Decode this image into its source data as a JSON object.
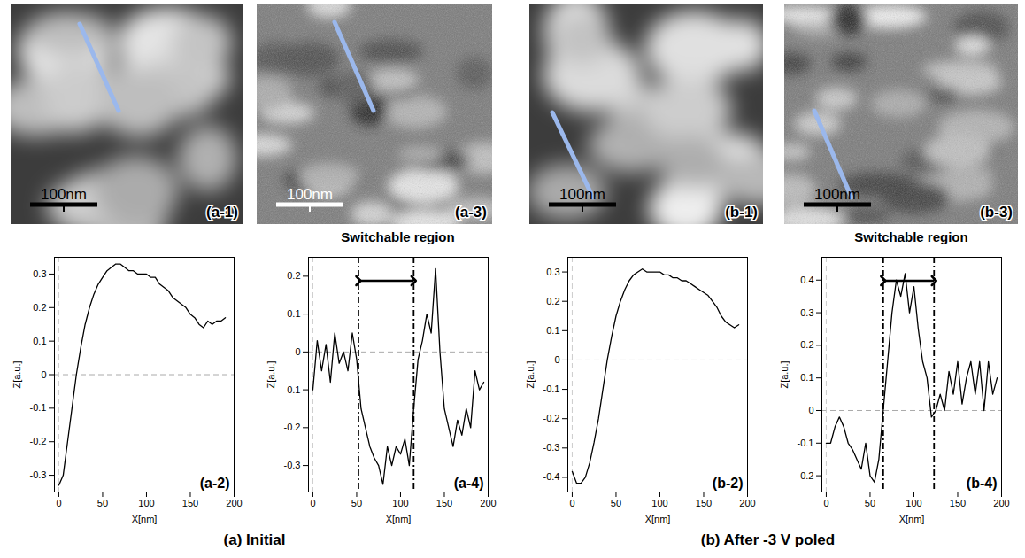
{
  "chart_data": [
    {
      "type": "line",
      "panel": "(a-2)",
      "color": "#000000",
      "x_label": "X[nm]",
      "y_label": "Z[a.u.]",
      "xlim": [
        -5,
        200
      ],
      "ylim": [
        -0.35,
        0.35
      ],
      "xticks": [
        0,
        50,
        100,
        150,
        200
      ],
      "yticks": [
        -0.3,
        -0.2,
        -0.1,
        0,
        0.1,
        0.2,
        0.3
      ],
      "reference_x": 0,
      "reference_y": 0,
      "x": [
        0,
        5,
        10,
        15,
        20,
        25,
        30,
        35,
        40,
        45,
        50,
        55,
        60,
        65,
        70,
        75,
        80,
        85,
        90,
        95,
        100,
        105,
        110,
        115,
        120,
        125,
        130,
        135,
        140,
        145,
        150,
        155,
        160,
        165,
        170,
        175,
        180,
        185,
        190
      ],
      "values": [
        -0.33,
        -0.3,
        -0.2,
        -0.1,
        0,
        0.08,
        0.15,
        0.2,
        0.24,
        0.27,
        0.29,
        0.31,
        0.32,
        0.33,
        0.33,
        0.32,
        0.31,
        0.31,
        0.3,
        0.3,
        0.3,
        0.29,
        0.29,
        0.27,
        0.26,
        0.25,
        0.23,
        0.22,
        0.21,
        0.2,
        0.18,
        0.17,
        0.15,
        0.14,
        0.16,
        0.15,
        0.16,
        0.16,
        0.17
      ]
    },
    {
      "type": "line",
      "panel": "(a-4)",
      "color": "#000000",
      "x_label": "X[nm]",
      "y_label": "Z[a.u.]",
      "xlim": [
        -5,
        200
      ],
      "ylim": [
        -0.37,
        0.25
      ],
      "xticks": [
        0,
        50,
        100,
        150,
        200
      ],
      "yticks": [
        -0.3,
        -0.2,
        -0.1,
        0,
        0.1,
        0.2
      ],
      "reference_x": 0,
      "reference_y": 0,
      "region": [
        52,
        115
      ],
      "region_label": "Switchable region",
      "x": [
        0,
        5,
        10,
        15,
        20,
        25,
        30,
        35,
        40,
        45,
        50,
        55,
        60,
        65,
        70,
        75,
        80,
        85,
        90,
        95,
        100,
        105,
        110,
        115,
        120,
        125,
        130,
        135,
        140,
        145,
        150,
        155,
        160,
        165,
        170,
        175,
        180,
        185,
        190,
        195
      ],
      "values": [
        -0.1,
        0.03,
        -0.05,
        0.02,
        -0.08,
        0.05,
        -0.03,
        0,
        -0.05,
        0.05,
        -0.02,
        -0.15,
        -0.2,
        -0.25,
        -0.28,
        -0.3,
        -0.35,
        -0.25,
        -0.3,
        -0.25,
        -0.27,
        -0.23,
        -0.3,
        -0.15,
        -0.02,
        0.03,
        0.1,
        0.05,
        0.22,
        0,
        -0.15,
        -0.2,
        -0.25,
        -0.18,
        -0.22,
        -0.15,
        -0.2,
        -0.05,
        -0.1,
        -0.08
      ]
    },
    {
      "type": "line",
      "panel": "(b-2)",
      "color": "#000000",
      "x_label": "X[nm]",
      "y_label": "Z[a.u.]",
      "xlim": [
        -5,
        200
      ],
      "ylim": [
        -0.45,
        0.35
      ],
      "xticks": [
        0,
        50,
        100,
        150,
        200
      ],
      "yticks": [
        -0.4,
        -0.3,
        -0.2,
        -0.1,
        0,
        0.1,
        0.2,
        0.3
      ],
      "reference_x": 0,
      "reference_y": 0,
      "x": [
        0,
        5,
        10,
        15,
        20,
        25,
        30,
        35,
        40,
        45,
        50,
        55,
        60,
        65,
        70,
        75,
        80,
        85,
        90,
        95,
        100,
        105,
        110,
        115,
        120,
        125,
        130,
        135,
        140,
        145,
        150,
        155,
        160,
        165,
        170,
        175,
        180,
        185,
        190
      ],
      "values": [
        -0.38,
        -0.42,
        -0.42,
        -0.4,
        -0.35,
        -0.28,
        -0.2,
        -0.1,
        0,
        0.08,
        0.15,
        0.2,
        0.24,
        0.27,
        0.29,
        0.3,
        0.31,
        0.3,
        0.3,
        0.3,
        0.3,
        0.29,
        0.29,
        0.28,
        0.28,
        0.27,
        0.27,
        0.26,
        0.25,
        0.24,
        0.23,
        0.22,
        0.2,
        0.18,
        0.15,
        0.13,
        0.12,
        0.11,
        0.12
      ]
    },
    {
      "type": "line",
      "panel": "(b-4)",
      "color": "#000000",
      "x_label": "X[nm]",
      "y_label": "Z[a.u.]",
      "xlim": [
        -5,
        200
      ],
      "ylim": [
        -0.25,
        0.47
      ],
      "xticks": [
        0,
        50,
        100,
        150,
        200
      ],
      "yticks": [
        -0.2,
        -0.1,
        0,
        0.1,
        0.2,
        0.3,
        0.4
      ],
      "reference_x": 0,
      "reference_y": 0,
      "region": [
        65,
        123
      ],
      "region_label": "Switchable region",
      "x": [
        0,
        5,
        10,
        15,
        20,
        25,
        30,
        35,
        40,
        45,
        50,
        55,
        60,
        65,
        70,
        75,
        80,
        85,
        90,
        95,
        100,
        105,
        110,
        115,
        120,
        125,
        130,
        135,
        140,
        145,
        150,
        155,
        160,
        165,
        170,
        175,
        180,
        185,
        190,
        195
      ],
      "values": [
        -0.1,
        -0.1,
        -0.05,
        -0.02,
        -0.05,
        -0.1,
        -0.12,
        -0.15,
        -0.18,
        -0.1,
        -0.2,
        -0.22,
        -0.15,
        0,
        0.15,
        0.3,
        0.4,
        0.35,
        0.42,
        0.3,
        0.38,
        0.25,
        0.15,
        0.1,
        -0.02,
        0,
        0.05,
        0,
        0.12,
        0.05,
        0.15,
        0.02,
        0.1,
        0.15,
        0.05,
        0.15,
        0,
        0.15,
        0.05,
        0.1
      ]
    }
  ],
  "images": [
    {
      "panel": "(a-1)",
      "scale_bar": "100nm",
      "scale_bar_color": "#000000",
      "line_color": "#9bb8ec"
    },
    {
      "panel": "(a-3)",
      "scale_bar": "100nm",
      "scale_bar_color": "#ffffff",
      "line_color": "#9bb8ec"
    },
    {
      "panel": "(b-1)",
      "scale_bar": "100nm",
      "scale_bar_color": "#000000",
      "line_color": "#9bb8ec"
    },
    {
      "panel": "(b-3)",
      "scale_bar": "100nm",
      "scale_bar_color": "#000000",
      "line_color": "#9bb8ec"
    }
  ],
  "captions": [
    "(a) Initial",
    "(b) After -3 V poled"
  ]
}
